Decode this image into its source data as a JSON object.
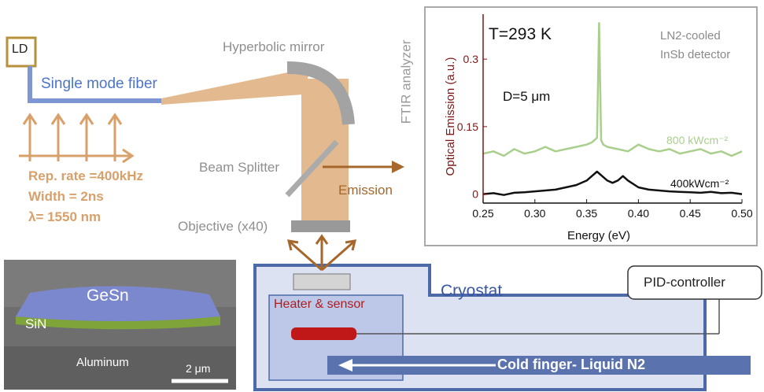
{
  "source": {
    "label": "LD"
  },
  "fiber": {
    "label": "Single mode fiber"
  },
  "pulse": {
    "rep_rate": "Rep. rate =400kHz",
    "width": "Width = 2ns",
    "wavelength": "λ= 1550 nm"
  },
  "optics": {
    "mirror": "Hyperbolic mirror",
    "splitter": "Beam Splitter",
    "emission": "Emission",
    "objective": "Objective (x40)",
    "ftir": "FTIR analyzer"
  },
  "sem": {
    "top_layer": "GeSn",
    "mid_layer": "SiN",
    "substrate": "Aluminum",
    "scale_bar": "2 μm"
  },
  "cryostat": {
    "label": "Cryostat",
    "heater": "Heater & sensor",
    "cold_finger": "Cold finger- Liquid N2",
    "pid": "PID-controller"
  },
  "colors": {
    "beam": "#e3b98f",
    "orange": "#d8a06a",
    "fiber": "#7e97d4",
    "cryostat_fill": "#dde2f3",
    "cryostat_border": "#4c6aa8",
    "heater": "#c01818",
    "ld_border": "#b6903a",
    "plot_axis": "#7a1616",
    "series_hot": "#a9cf8d",
    "series_cold": "#111111",
    "emission_arrow": "#a5672c"
  },
  "chart_data": {
    "type": "line",
    "title": "T=293 K",
    "subtitle": "D=5 μm",
    "note": [
      "LN2-cooled",
      "InSb detector"
    ],
    "xlabel": "Energy (eV)",
    "ylabel": "Optical Emission (a.u.)",
    "xlim": [
      0.25,
      0.5
    ],
    "ylim": [
      -0.02,
      0.4
    ],
    "xticks": [
      "0.25",
      "0.30",
      "0.35",
      "0.40",
      "0.45",
      "0.50"
    ],
    "yticks": [
      "0",
      "0.15",
      "0.3"
    ],
    "series": [
      {
        "name": "800 kWcm⁻²",
        "x": [
          0.25,
          0.26,
          0.27,
          0.28,
          0.29,
          0.3,
          0.31,
          0.32,
          0.33,
          0.34,
          0.35,
          0.355,
          0.36,
          0.362,
          0.364,
          0.366,
          0.37,
          0.38,
          0.39,
          0.4,
          0.41,
          0.42,
          0.43,
          0.44,
          0.45,
          0.46,
          0.47,
          0.48,
          0.49,
          0.5
        ],
        "y": [
          0.09,
          0.095,
          0.085,
          0.1,
          0.09,
          0.095,
          0.105,
          0.095,
          0.1,
          0.105,
          0.11,
          0.115,
          0.125,
          0.38,
          0.12,
          0.11,
          0.105,
          0.1,
          0.095,
          0.11,
          0.1,
          0.095,
          0.1,
          0.09,
          0.095,
          0.1,
          0.09,
          0.095,
          0.085,
          0.095
        ]
      },
      {
        "name": "400kWcm⁻²",
        "x": [
          0.25,
          0.26,
          0.27,
          0.28,
          0.29,
          0.3,
          0.31,
          0.32,
          0.33,
          0.34,
          0.35,
          0.355,
          0.36,
          0.365,
          0.37,
          0.375,
          0.38,
          0.385,
          0.39,
          0.4,
          0.41,
          0.42,
          0.43,
          0.44,
          0.45,
          0.46,
          0.47,
          0.48,
          0.49,
          0.5
        ],
        "y": [
          0.0,
          0.002,
          -0.002,
          0.003,
          0.004,
          0.006,
          0.008,
          0.01,
          0.015,
          0.02,
          0.03,
          0.04,
          0.05,
          0.04,
          0.03,
          0.025,
          0.03,
          0.04,
          0.03,
          0.015,
          0.01,
          0.008,
          0.006,
          0.005,
          0.004,
          0.003,
          0.005,
          0.002,
          0.003,
          0.0
        ]
      }
    ]
  }
}
